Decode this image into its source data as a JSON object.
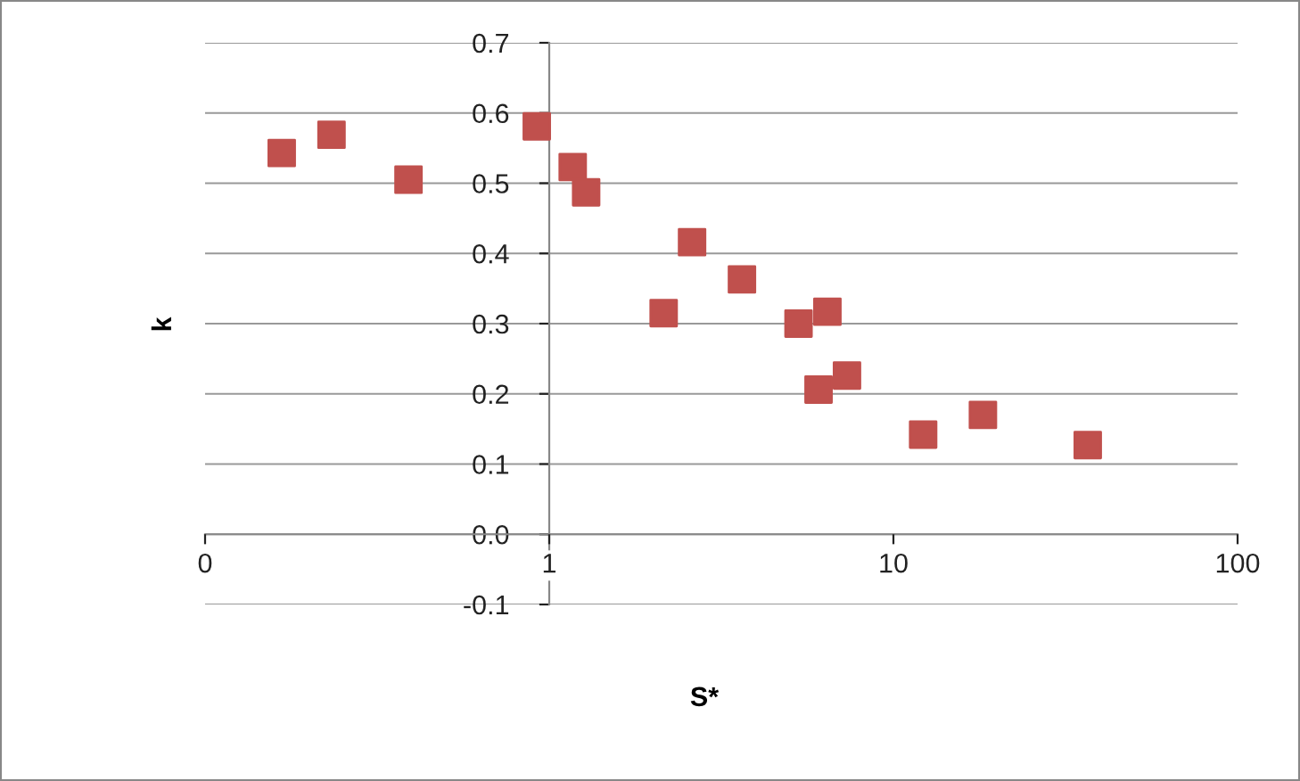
{
  "chart_data": {
    "type": "scatter",
    "xlabel": "S*",
    "ylabel": "k",
    "log": "x",
    "marker": "square",
    "grid": "y",
    "legend": false,
    "x": [
      0.167,
      0.233,
      0.39,
      0.92,
      1.17,
      1.28,
      2.6,
      2.15,
      3.63,
      5.3,
      6.43,
      6.06,
      7.33,
      12.2,
      18.2,
      36.7
    ],
    "series": [
      {
        "color": "#c0504d",
        "values": [
          0.543,
          0.569,
          0.505,
          0.581,
          0.523,
          0.487,
          0.416,
          0.315,
          0.363,
          0.3,
          0.317,
          0.206,
          0.226,
          0.142,
          0.17,
          0.127
        ]
      }
    ],
    "xlim": [
      0.1,
      100
    ],
    "xticks": [
      {
        "value": 0.1,
        "label": "0"
      },
      1,
      10,
      100
    ],
    "ylim": [
      -0.1,
      0.7
    ],
    "yticks": [
      {
        "value": -0.1,
        "label": "-0.1"
      },
      {
        "value": 0.0,
        "label": "0.0"
      },
      0.1,
      0.2,
      0.3,
      0.4,
      0.5,
      0.6,
      0.7
    ]
  }
}
